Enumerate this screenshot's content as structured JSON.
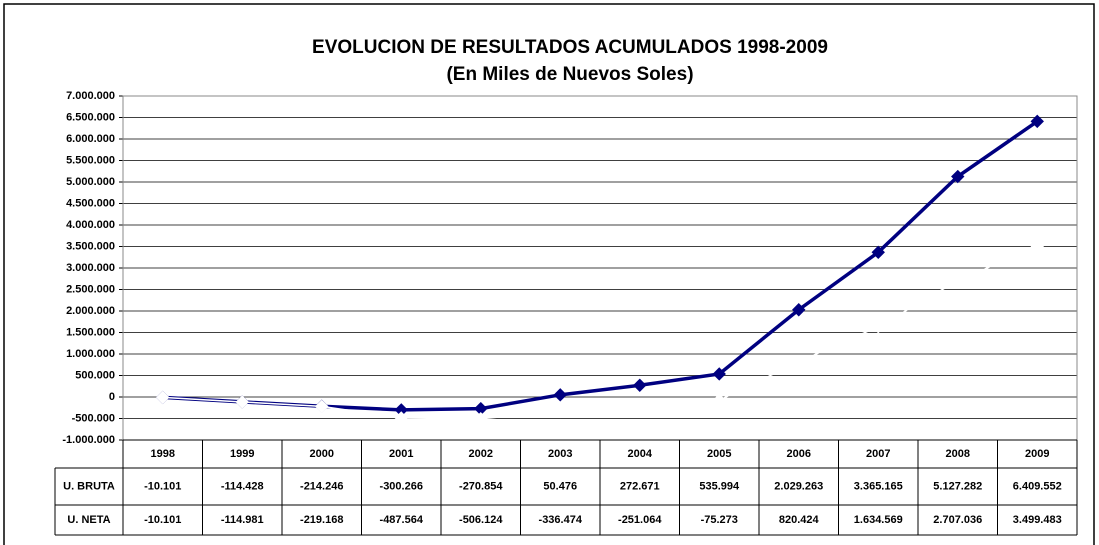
{
  "chart_data": {
    "type": "line",
    "title": "EVOLUCION DE RESULTADOS ACUMULADOS 1998-2009",
    "subtitle": "(En Miles de Nuevos Soles)",
    "categories": [
      "1998",
      "1999",
      "2000",
      "2001",
      "2002",
      "2003",
      "2004",
      "2005",
      "2006",
      "2007",
      "2008",
      "2009"
    ],
    "series": [
      {
        "name": "U. BRUTA",
        "color": "#000080",
        "values": [
          -10101,
          -114428,
          -214246,
          -300266,
          -270854,
          50476,
          272671,
          535994,
          2029263,
          3365165,
          5127282,
          6409552
        ],
        "value_labels": [
          "-10.101",
          "-114.428",
          "-214.246",
          "-300.266",
          "-270.854",
          "50.476",
          "272.671",
          "535.994",
          "2.029.263",
          "3.365.165",
          "5.127.282",
          "6.409.552"
        ]
      },
      {
        "name": "U. NETA",
        "color": "#ffffff",
        "values": [
          -10101,
          -114981,
          -219168,
          -487564,
          -506124,
          -336474,
          -251064,
          -75273,
          820424,
          1634569,
          2707036,
          3499483
        ],
        "value_labels": [
          "-10.101",
          "-114.981",
          "-219.168",
          "-487.564",
          "-506.124",
          "-336.474",
          "-251.064",
          "-75.273",
          "820.424",
          "1.634.569",
          "2.707.036",
          "3.499.483"
        ]
      }
    ],
    "ylim": [
      -1000000,
      7000000
    ],
    "yticks": [
      {
        "value": -1000000,
        "label": "-1.000.000"
      },
      {
        "value": -500000,
        "label": "-500.000"
      },
      0,
      {
        "value": 500000,
        "label": "500.000"
      },
      {
        "value": 1000000,
        "label": "1.000.000"
      },
      {
        "value": 1500000,
        "label": "1.500.000"
      },
      {
        "value": 2000000,
        "label": "2.000.000"
      },
      {
        "value": 2500000,
        "label": "2.500.000"
      },
      {
        "value": 3000000,
        "label": "3.000.000"
      },
      {
        "value": 3500000,
        "label": "3.500.000"
      },
      {
        "value": 4000000,
        "label": "4.000.000"
      },
      {
        "value": 4500000,
        "label": "4.500.000"
      },
      {
        "value": 5000000,
        "label": "5.000.000"
      },
      {
        "value": 5500000,
        "label": "5.500.000"
      },
      {
        "value": 6000000,
        "label": "6.000.000"
      },
      {
        "value": 6500000,
        "label": "6.500.000"
      },
      {
        "value": 7000000,
        "label": "7.000.000"
      }
    ],
    "grid": true
  }
}
